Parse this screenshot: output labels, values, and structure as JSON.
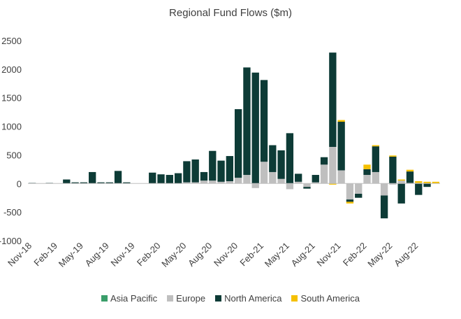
{
  "chart_data": {
    "type": "bar",
    "stacked": true,
    "title": "Regional Fund Flows ($m)",
    "xlabel": "",
    "ylabel": "",
    "ylim": [
      -1000,
      2500
    ],
    "yticks": [
      -1000,
      -500,
      0,
      500,
      1000,
      1500,
      2000,
      2500
    ],
    "grid": false,
    "legend_position": "bottom",
    "x_tick_labels": [
      "Nov-18",
      "Feb-19",
      "May-19",
      "Aug-19",
      "Nov-19",
      "Feb-20",
      "May-20",
      "Aug-20",
      "Nov-20",
      "Feb-21",
      "May-21",
      "Aug-21",
      "Nov-21",
      "Feb-22",
      "May-22",
      "Aug-22"
    ],
    "categories": [
      "Nov-18",
      "Dec-18",
      "Jan-19",
      "Feb-19",
      "Mar-19",
      "Apr-19",
      "May-19",
      "Jun-19",
      "Jul-19",
      "Aug-19",
      "Sep-19",
      "Oct-19",
      "Nov-19",
      "Dec-19",
      "Jan-20",
      "Feb-20",
      "Mar-20",
      "Apr-20",
      "May-20",
      "Jun-20",
      "Jul-20",
      "Aug-20",
      "Sep-20",
      "Oct-20",
      "Nov-20",
      "Dec-20",
      "Jan-21",
      "Feb-21",
      "Mar-21",
      "Apr-21",
      "May-21",
      "Jun-21",
      "Jul-21",
      "Aug-21",
      "Sep-21",
      "Oct-21",
      "Nov-21",
      "Dec-21",
      "Jan-22",
      "Feb-22",
      "Mar-22",
      "Apr-22",
      "May-22",
      "Jun-22",
      "Jul-22",
      "Aug-22",
      "Sep-22",
      "Oct-22"
    ],
    "series": [
      {
        "name": "Asia Pacific",
        "color": "#3a9e6a",
        "values": [
          0,
          0,
          0,
          0,
          0,
          0,
          0,
          0,
          0,
          0,
          0,
          0,
          0,
          0,
          0,
          0,
          0,
          0,
          0,
          0,
          0,
          0,
          0,
          0,
          0,
          0,
          0,
          0,
          0,
          0,
          0,
          0,
          0,
          0,
          0,
          0,
          0,
          0,
          0,
          0,
          0,
          0,
          0,
          0,
          0,
          0,
          0,
          0
        ]
      },
      {
        "name": "Europe",
        "color": "#bfbfbf",
        "values": [
          0,
          0,
          0,
          0,
          0,
          0,
          0,
          0,
          0,
          0,
          0,
          0,
          0,
          0,
          0,
          0,
          0,
          0,
          20,
          20,
          50,
          50,
          30,
          40,
          100,
          150,
          -80,
          380,
          200,
          80,
          -100,
          30,
          -60,
          20,
          330,
          640,
          230,
          -280,
          -180,
          150,
          200,
          -210,
          -20,
          50,
          10,
          10,
          0,
          0
        ]
      },
      {
        "name": "North America",
        "color": "#0d3b36",
        "values": [
          10,
          0,
          10,
          0,
          70,
          20,
          20,
          200,
          20,
          20,
          220,
          20,
          0,
          0,
          190,
          160,
          150,
          180,
          370,
          400,
          150,
          520,
          370,
          440,
          1200,
          1880,
          1940,
          1430,
          470,
          500,
          880,
          140,
          -30,
          130,
          130,
          1650,
          850,
          -40,
          -70,
          100,
          450,
          -400,
          470,
          -350,
          200,
          -200,
          -60,
          0
        ]
      },
      {
        "name": "South America",
        "color": "#f5c000",
        "values": [
          0,
          0,
          0,
          0,
          0,
          0,
          0,
          0,
          0,
          0,
          0,
          0,
          0,
          0,
          0,
          0,
          0,
          0,
          0,
          0,
          0,
          0,
          0,
          0,
          0,
          0,
          0,
          0,
          0,
          0,
          0,
          0,
          0,
          0,
          0,
          -20,
          30,
          -30,
          0,
          80,
          20,
          0,
          20,
          20,
          30,
          30,
          30,
          30
        ]
      }
    ]
  }
}
